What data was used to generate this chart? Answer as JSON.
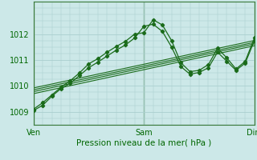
{
  "xlabel": "Pression niveau de la mer( hPa )",
  "xtick_labels": [
    "Ven",
    "Sam",
    "Dim"
  ],
  "xtick_positions": [
    0,
    48,
    96
  ],
  "ytick_labels": [
    "1009",
    "1010",
    "1011",
    "1012"
  ],
  "ytick_values": [
    1009,
    1010,
    1011,
    1012
  ],
  "ylim": [
    1008.6,
    1013.0
  ],
  "xlim": [
    0,
    96
  ],
  "bg_color": "#cce8e8",
  "grid_color": "#aacfcf",
  "line_color": "#1a6b1a",
  "series1_x": [
    0,
    4,
    8,
    12,
    16,
    20,
    24,
    28,
    32,
    36,
    40,
    44,
    48,
    52,
    56,
    60,
    64,
    68,
    72,
    76,
    80,
    84,
    88,
    92,
    96
  ],
  "series1_y": [
    1009.1,
    1009.35,
    1009.65,
    1009.95,
    1010.2,
    1010.5,
    1010.85,
    1011.05,
    1011.3,
    1011.52,
    1011.72,
    1012.0,
    1012.05,
    1012.55,
    1012.35,
    1011.75,
    1010.9,
    1010.55,
    1010.6,
    1010.82,
    1011.45,
    1011.08,
    1010.65,
    1010.95,
    1011.85
  ],
  "series2_x": [
    0,
    4,
    8,
    12,
    16,
    20,
    24,
    28,
    32,
    36,
    40,
    44,
    48,
    52,
    56,
    60,
    64,
    68,
    72,
    76,
    80,
    84,
    88,
    92,
    96
  ],
  "series2_y": [
    1009.05,
    1009.25,
    1009.6,
    1009.9,
    1010.1,
    1010.4,
    1010.7,
    1010.92,
    1011.15,
    1011.38,
    1011.58,
    1011.85,
    1012.3,
    1012.38,
    1012.1,
    1011.5,
    1010.75,
    1010.45,
    1010.52,
    1010.7,
    1011.3,
    1010.95,
    1010.6,
    1010.88,
    1011.75
  ],
  "linear_lines": [
    {
      "x": [
        0,
        96
      ],
      "y": [
        1009.7,
        1011.55
      ]
    },
    {
      "x": [
        0,
        96
      ],
      "y": [
        1009.78,
        1011.62
      ]
    },
    {
      "x": [
        0,
        96
      ],
      "y": [
        1009.85,
        1011.68
      ]
    },
    {
      "x": [
        0,
        96
      ],
      "y": [
        1009.92,
        1011.75
      ]
    }
  ],
  "vlines": [
    0,
    48,
    96
  ],
  "vline_color": "#3a7a3a"
}
